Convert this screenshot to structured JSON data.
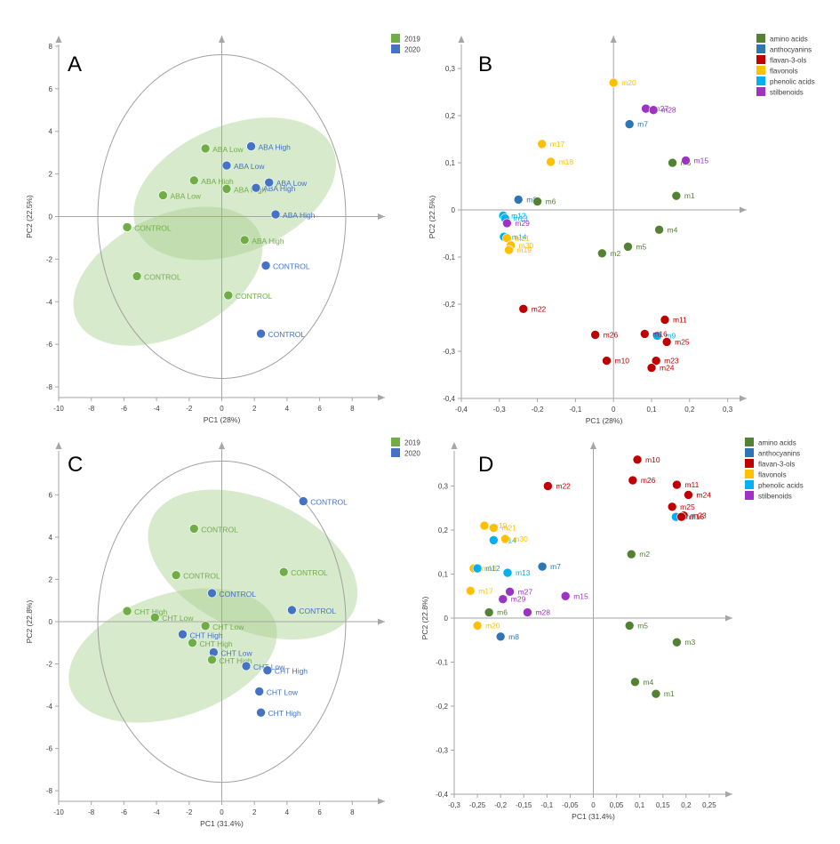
{
  "chart_data": [
    {
      "panel": "A",
      "type": "scatter",
      "xlabel": "PC1 (28%)",
      "ylabel": "PC2 (22.5%)",
      "xlim": [
        -10,
        10
      ],
      "ylim": [
        -8.5,
        8.5
      ],
      "xticks": [
        -10,
        -8,
        -6,
        -4,
        -2,
        0,
        2,
        4,
        6,
        8
      ],
      "yticks": [
        -8,
        -6,
        -4,
        -2,
        0,
        2,
        4,
        6,
        8
      ],
      "tick_labels_x": [
        "-10",
        "-8",
        "-6",
        "-4",
        "-2",
        "0",
        "2",
        "4",
        "6",
        "8"
      ],
      "tick_labels_y": [
        "-8",
        "-6",
        "-4",
        "-2",
        "0",
        "2",
        "4",
        "6",
        "8"
      ],
      "legend": [
        {
          "label": "2019",
          "color": "#70ad47"
        },
        {
          "label": "2020",
          "color": "#4472c4"
        }
      ],
      "grid": false,
      "circle_radius": 7.6,
      "ellipses": [
        {
          "cx": 0.8,
          "cy": 1.3,
          "rx": 6.5,
          "ry": 3.0,
          "angle": -22
        },
        {
          "cx": -3.3,
          "cy": -2.8,
          "rx": 6.2,
          "ry": 2.8,
          "angle": -26
        }
      ],
      "points": [
        {
          "x": -1.0,
          "y": 3.2,
          "label": "ABA Low",
          "group": "2019"
        },
        {
          "x": 1.8,
          "y": 3.3,
          "label": "ABA High",
          "group": "2020"
        },
        {
          "x": 0.3,
          "y": 2.4,
          "label": "ABA Low",
          "group": "2020"
        },
        {
          "x": -1.7,
          "y": 1.7,
          "label": "ABA High",
          "group": "2019"
        },
        {
          "x": 0.3,
          "y": 1.3,
          "label": "ABA High",
          "group": "2019"
        },
        {
          "x": 2.1,
          "y": 1.35,
          "label": "ABA High",
          "group": "2020"
        },
        {
          "x": 2.9,
          "y": 1.6,
          "label": "ABA Low",
          "group": "2020"
        },
        {
          "x": -3.6,
          "y": 1.0,
          "label": "ABA Low",
          "group": "2019"
        },
        {
          "x": 3.3,
          "y": 0.1,
          "label": "ABA High",
          "group": "2020"
        },
        {
          "x": -5.8,
          "y": -0.5,
          "label": "CONTROL",
          "group": "2019"
        },
        {
          "x": 1.4,
          "y": -1.1,
          "label": "ABA High",
          "group": "2019"
        },
        {
          "x": -5.2,
          "y": -2.8,
          "label": "CONTROL",
          "group": "2019"
        },
        {
          "x": 2.7,
          "y": -2.3,
          "label": "CONTROL",
          "group": "2020"
        },
        {
          "x": 0.4,
          "y": -3.7,
          "label": "CONTROL",
          "group": "2019"
        },
        {
          "x": 2.4,
          "y": -5.5,
          "label": "CONTROL",
          "group": "2020"
        }
      ]
    },
    {
      "panel": "B",
      "type": "scatter",
      "xlabel": "PC1 (28%)",
      "ylabel": "PC2 (22.5%)",
      "xlim": [
        -0.4,
        0.35
      ],
      "ylim": [
        -0.4,
        0.37
      ],
      "xticks": [
        -0.4,
        -0.3,
        -0.2,
        -0.1,
        0,
        0.1,
        0.2,
        0.3
      ],
      "yticks": [
        -0.4,
        -0.3,
        -0.2,
        -0.1,
        0,
        0.1,
        0.2,
        0.3
      ],
      "tick_labels_x": [
        "-0,4",
        "-0,3",
        "-0,2",
        "-0,1",
        "0",
        "0,1",
        "0,2",
        "0,3"
      ],
      "tick_labels_y": [
        "-0,4",
        "-0,3",
        "-0,2",
        "-0,1",
        "0",
        "0,1",
        "0,2",
        "0,3"
      ],
      "legend": [
        {
          "label": "amino acids",
          "color": "#548235"
        },
        {
          "label": "anthocyanins",
          "color": "#2e75b6"
        },
        {
          "label": "flavan-3-ols",
          "color": "#c00000"
        },
        {
          "label": "flavonols",
          "color": "#ffc000"
        },
        {
          "label": "phenolic  acids",
          "color": "#00b0f0"
        },
        {
          "label": "stilbenoids",
          "color": "#9c33c4"
        }
      ],
      "grid": false,
      "points": [
        {
          "x": 0.0,
          "y": 0.27,
          "label": "m20",
          "group": "flavonols"
        },
        {
          "x": 0.085,
          "y": 0.215,
          "label": "m27",
          "group": "stilbenoids"
        },
        {
          "x": 0.105,
          "y": 0.212,
          "label": "m28",
          "group": "stilbenoids"
        },
        {
          "x": 0.042,
          "y": 0.182,
          "label": "m7",
          "group": "anthocyanins"
        },
        {
          "x": -0.188,
          "y": 0.14,
          "label": "m17",
          "group": "flavonols"
        },
        {
          "x": -0.165,
          "y": 0.102,
          "label": "m18",
          "group": "flavonols"
        },
        {
          "x": 0.155,
          "y": 0.1,
          "label": "m3",
          "group": "amino acids"
        },
        {
          "x": 0.19,
          "y": 0.105,
          "label": "m15",
          "group": "stilbenoids"
        },
        {
          "x": 0.165,
          "y": 0.03,
          "label": "m1",
          "group": "amino acids"
        },
        {
          "x": -0.25,
          "y": 0.022,
          "label": "m8",
          "group": "anthocyanins"
        },
        {
          "x": -0.2,
          "y": 0.018,
          "label": "m6",
          "group": "amino acids"
        },
        {
          "x": -0.29,
          "y": -0.012,
          "label": "m12",
          "group": "phenolic acids"
        },
        {
          "x": -0.285,
          "y": -0.018,
          "label": "m13",
          "group": "phenolic acids"
        },
        {
          "x": -0.28,
          "y": -0.028,
          "label": "m29",
          "group": "stilbenoids"
        },
        {
          "x": 0.12,
          "y": -0.042,
          "label": "m4",
          "group": "amino acids"
        },
        {
          "x": -0.288,
          "y": -0.057,
          "label": "m14",
          "group": "phenolic acids"
        },
        {
          "x": -0.28,
          "y": -0.06,
          "label": "m21",
          "group": "flavonols"
        },
        {
          "x": -0.27,
          "y": -0.075,
          "label": "m30",
          "group": "flavonols"
        },
        {
          "x": -0.275,
          "y": -0.085,
          "label": "m19",
          "group": "flavonols"
        },
        {
          "x": 0.038,
          "y": -0.078,
          "label": "m5",
          "group": "amino acids"
        },
        {
          "x": -0.03,
          "y": -0.092,
          "label": "m2",
          "group": "amino acids"
        },
        {
          "x": -0.237,
          "y": -0.21,
          "label": "m22",
          "group": "flavan-3-ols"
        },
        {
          "x": 0.135,
          "y": -0.233,
          "label": "m11",
          "group": "flavan-3-ols"
        },
        {
          "x": 0.115,
          "y": -0.267,
          "label": "m9",
          "group": "phenolic acids"
        },
        {
          "x": 0.082,
          "y": -0.263,
          "label": "m16",
          "group": "flavan-3-ols"
        },
        {
          "x": -0.048,
          "y": -0.265,
          "label": "m26",
          "group": "flavan-3-ols"
        },
        {
          "x": 0.14,
          "y": -0.28,
          "label": "m25",
          "group": "flavan-3-ols"
        },
        {
          "x": -0.018,
          "y": -0.32,
          "label": "m10",
          "group": "flavan-3-ols"
        },
        {
          "x": 0.112,
          "y": -0.32,
          "label": "m23",
          "group": "flavan-3-ols"
        },
        {
          "x": 0.1,
          "y": -0.335,
          "label": "m24",
          "group": "flavan-3-ols"
        }
      ]
    },
    {
      "panel": "C",
      "type": "scatter",
      "xlabel": "PC1 (31.4%)",
      "ylabel": "PC2 (22.8%)",
      "xlim": [
        -10,
        10
      ],
      "ylim": [
        -8.5,
        8.5
      ],
      "xticks": [
        -10,
        -8,
        -6,
        -4,
        -2,
        0,
        2,
        4,
        6,
        8
      ],
      "yticks": [
        -8,
        -6,
        -4,
        -2,
        0,
        2,
        4,
        6
      ],
      "tick_labels_x": [
        "-10",
        "-8",
        "-6",
        "-4",
        "-2",
        "0",
        "2",
        "4",
        "6",
        "8"
      ],
      "tick_labels_y": [
        "-8",
        "-6",
        "-4",
        "-2",
        "0",
        "2",
        "4",
        "6"
      ],
      "legend": [
        {
          "label": "2019",
          "color": "#70ad47"
        },
        {
          "label": "2020",
          "color": "#4472c4"
        }
      ],
      "grid": false,
      "circle_radius": 7.6,
      "ellipses": [
        {
          "cx": 1.9,
          "cy": 2.7,
          "rx": 6.8,
          "ry": 3.1,
          "angle": 24
        },
        {
          "cx": -3.0,
          "cy": -1.6,
          "rx": 6.6,
          "ry": 2.9,
          "angle": -18
        }
      ],
      "points": [
        {
          "x": 5.0,
          "y": 5.7,
          "label": "CONTROL",
          "group": "2020"
        },
        {
          "x": -1.7,
          "y": 4.4,
          "label": "CONTROL",
          "group": "2019"
        },
        {
          "x": 3.8,
          "y": 2.35,
          "label": "CONTROL",
          "group": "2019"
        },
        {
          "x": -2.8,
          "y": 2.2,
          "label": "CONTROL",
          "group": "2019"
        },
        {
          "x": -0.6,
          "y": 1.35,
          "label": "CONTROL",
          "group": "2020"
        },
        {
          "x": 4.3,
          "y": 0.55,
          "label": "CONTROL",
          "group": "2020"
        },
        {
          "x": -5.8,
          "y": 0.5,
          "label": "CHT High",
          "group": "2019"
        },
        {
          "x": -4.1,
          "y": 0.2,
          "label": "CHT Low",
          "group": "2019"
        },
        {
          "x": -1.0,
          "y": -0.2,
          "label": "CHT Low",
          "group": "2019"
        },
        {
          "x": -2.4,
          "y": -0.6,
          "label": "CHT High",
          "group": "2020"
        },
        {
          "x": -1.8,
          "y": -1.0,
          "label": "CHT High",
          "group": "2019"
        },
        {
          "x": -0.5,
          "y": -1.45,
          "label": "CHT Low",
          "group": "2020"
        },
        {
          "x": -0.6,
          "y": -1.8,
          "label": "CHT High",
          "group": "2019"
        },
        {
          "x": 1.5,
          "y": -2.1,
          "label": "CHT Low",
          "group": "2020"
        },
        {
          "x": 2.8,
          "y": -2.3,
          "label": "CHT High",
          "group": "2020"
        },
        {
          "x": 2.3,
          "y": -3.3,
          "label": "CHT Low",
          "group": "2020"
        },
        {
          "x": 2.4,
          "y": -4.3,
          "label": "CHT High",
          "group": "2020"
        }
      ]
    },
    {
      "panel": "D",
      "type": "scatter",
      "xlabel": "PC1 (31.4%)",
      "ylabel": "PC2 (22.8%)",
      "xlim": [
        -0.3,
        0.3
      ],
      "ylim": [
        -0.4,
        0.4
      ],
      "xticks": [
        -0.3,
        -0.25,
        -0.2,
        -0.15,
        -0.1,
        -0.05,
        0,
        0.05,
        0.1,
        0.15,
        0.2,
        0.25
      ],
      "yticks": [
        -0.4,
        -0.3,
        -0.2,
        -0.1,
        0,
        0.1,
        0.2,
        0.3
      ],
      "tick_labels_x": [
        "-0,3",
        "-0,25",
        "-0,2",
        "-0,15",
        "-0,1",
        "-0,05",
        "0",
        "0,05",
        "0,1",
        "0,15",
        "0,2",
        "0,25"
      ],
      "tick_labels_y": [
        "-0,4",
        "-0,3",
        "-0,2",
        "-0,1",
        "0",
        "0,1",
        "0,2",
        "0,3"
      ],
      "legend": [
        {
          "label": "amino acids",
          "color": "#548235"
        },
        {
          "label": "anthocyanins",
          "color": "#2e75b6"
        },
        {
          "label": "flavan-3-ols",
          "color": "#c00000"
        },
        {
          "label": "flavonols",
          "color": "#ffc000"
        },
        {
          "label": "phenolic  acids",
          "color": "#00b0f0"
        },
        {
          "label": "stilbenoids",
          "color": "#9c33c4"
        }
      ],
      "grid": false,
      "points": [
        {
          "x": 0.095,
          "y": 0.36,
          "label": "m10",
          "group": "flavan-3-ols"
        },
        {
          "x": -0.098,
          "y": 0.3,
          "label": "m22",
          "group": "flavan-3-ols"
        },
        {
          "x": 0.085,
          "y": 0.313,
          "label": "m26",
          "group": "flavan-3-ols"
        },
        {
          "x": 0.18,
          "y": 0.303,
          "label": "m11",
          "group": "flavan-3-ols"
        },
        {
          "x": 0.205,
          "y": 0.28,
          "label": "m24",
          "group": "flavan-3-ols"
        },
        {
          "x": 0.17,
          "y": 0.253,
          "label": "m25",
          "group": "flavan-3-ols"
        },
        {
          "x": 0.195,
          "y": 0.233,
          "label": "m23",
          "group": "flavan-3-ols"
        },
        {
          "x": 0.178,
          "y": 0.23,
          "label": "m9",
          "group": "phenolic acids"
        },
        {
          "x": 0.19,
          "y": 0.23,
          "label": "m16",
          "group": "flavan-3-ols"
        },
        {
          "x": -0.235,
          "y": 0.21,
          "label": "m19",
          "group": "flavonols"
        },
        {
          "x": -0.215,
          "y": 0.205,
          "label": "m21",
          "group": "flavonols"
        },
        {
          "x": -0.215,
          "y": 0.177,
          "label": "m14",
          "group": "phenolic acids"
        },
        {
          "x": -0.19,
          "y": 0.18,
          "label": "m30",
          "group": "flavonols"
        },
        {
          "x": 0.082,
          "y": 0.145,
          "label": "m2",
          "group": "amino acids"
        },
        {
          "x": -0.258,
          "y": 0.113,
          "label": "m18",
          "group": "flavonols"
        },
        {
          "x": -0.25,
          "y": 0.113,
          "label": "m12",
          "group": "phenolic acids"
        },
        {
          "x": -0.185,
          "y": 0.103,
          "label": "m13",
          "group": "phenolic acids"
        },
        {
          "x": -0.11,
          "y": 0.117,
          "label": "m7",
          "group": "anthocyanins"
        },
        {
          "x": -0.265,
          "y": 0.062,
          "label": "m17",
          "group": "flavonols"
        },
        {
          "x": -0.18,
          "y": 0.06,
          "label": "m27",
          "group": "stilbenoids"
        },
        {
          "x": -0.06,
          "y": 0.05,
          "label": "m15",
          "group": "stilbenoids"
        },
        {
          "x": -0.195,
          "y": 0.043,
          "label": "m29",
          "group": "stilbenoids"
        },
        {
          "x": -0.225,
          "y": 0.013,
          "label": "m6",
          "group": "amino acids"
        },
        {
          "x": -0.142,
          "y": 0.013,
          "label": "m28",
          "group": "stilbenoids"
        },
        {
          "x": -0.25,
          "y": -0.017,
          "label": "m20",
          "group": "flavonols"
        },
        {
          "x": 0.078,
          "y": -0.017,
          "label": "m5",
          "group": "amino acids"
        },
        {
          "x": -0.2,
          "y": -0.042,
          "label": "m8",
          "group": "anthocyanins"
        },
        {
          "x": 0.18,
          "y": -0.055,
          "label": "m3",
          "group": "amino acids"
        },
        {
          "x": 0.09,
          "y": -0.145,
          "label": "m4",
          "group": "amino acids"
        },
        {
          "x": 0.135,
          "y": -0.172,
          "label": "m1",
          "group": "amino acids"
        }
      ]
    }
  ]
}
